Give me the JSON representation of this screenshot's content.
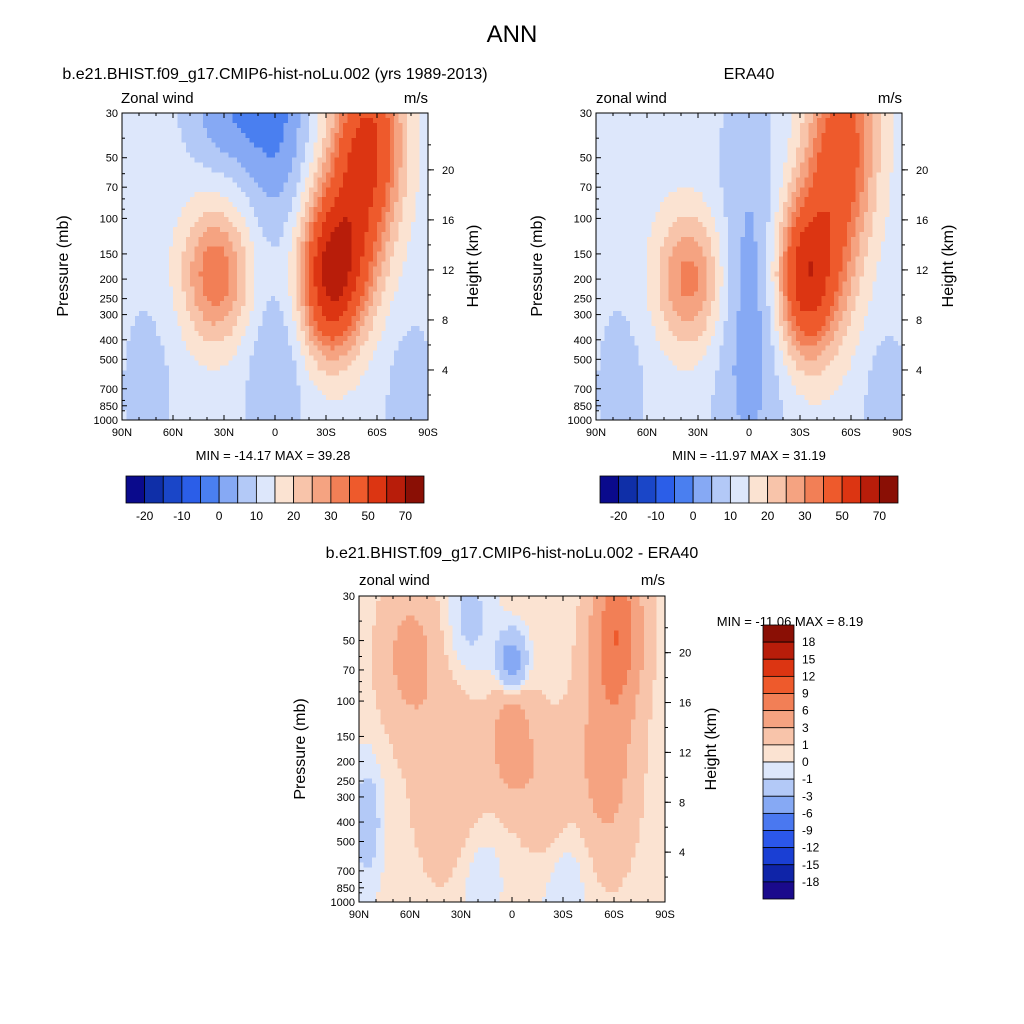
{
  "figure_title": "ANN",
  "chart_data": [
    {
      "type": "heatmap",
      "title": "b.e21.BHIST.f09_g17.CMIP6-hist-noLu.002 (yrs 1989-2013)",
      "left_label": "Zonal wind",
      "right_label": "m/s",
      "ylabel": "Pressure (mb)",
      "ylabel_right": "Height (km)",
      "x_ticks": [
        "90N",
        "60N",
        "30N",
        "0",
        "30S",
        "60S",
        "90S"
      ],
      "y_ticks": [
        "30",
        "50",
        "70",
        "100",
        "150",
        "200",
        "250",
        "300",
        "400",
        "500",
        "700",
        "850",
        "1000"
      ],
      "y2_ticks": [
        "20",
        "16",
        "12",
        "8",
        "4"
      ],
      "stats": "MIN = -14.17  MAX =  39.28",
      "min": -14.17,
      "max": 39.28,
      "colorbar_labels": [
        "-20",
        "-10",
        "0",
        "10",
        "20",
        "30",
        "50",
        "70"
      ],
      "features": [
        {
          "lat": 35,
          "p": 190,
          "value": 22,
          "sx": 14,
          "sp": 0.55
        },
        {
          "lat": -32,
          "p": 200,
          "value": 37,
          "sx": 12,
          "sp": 0.6
        },
        {
          "lat": -55,
          "p": 40,
          "value": 32,
          "sx": 14,
          "sp": 0.7
        },
        {
          "lat": -45,
          "p": 120,
          "value": 22,
          "sx": 14,
          "sp": 0.7
        },
        {
          "lat": 0,
          "p": 30,
          "value": -13,
          "sx": 14,
          "sp": 0.9
        },
        {
          "lat": 30,
          "p": 30,
          "value": -10,
          "sx": 15,
          "sp": 0.5
        },
        {
          "lat": 0,
          "p": 600,
          "value": -7,
          "sx": 12,
          "sp": 0.7
        },
        {
          "lat": 75,
          "p": 700,
          "value": -4,
          "sx": 12,
          "sp": 0.8
        },
        {
          "lat": -80,
          "p": 800,
          "value": -6,
          "sx": 10,
          "sp": 0.6
        }
      ]
    },
    {
      "type": "heatmap",
      "title": "ERA40",
      "left_label": "zonal wind",
      "right_label": "m/s",
      "ylabel": "Pressure (mb)",
      "ylabel_right": "Height (km)",
      "x_ticks": [
        "90N",
        "60N",
        "30N",
        "0",
        "30S",
        "60S",
        "90S"
      ],
      "y_ticks": [
        "30",
        "50",
        "70",
        "100",
        "150",
        "200",
        "250",
        "300",
        "400",
        "500",
        "700",
        "850",
        "1000"
      ],
      "y2_ticks": [
        "20",
        "16",
        "12",
        "8",
        "4"
      ],
      "stats": "MIN = -11.97  MAX =  31.19",
      "min": -11.97,
      "max": 31.19,
      "colorbar_labels": [
        "-20",
        "-10",
        "0",
        "10",
        "20",
        "30",
        "50",
        "70"
      ],
      "features": [
        {
          "lat": 35,
          "p": 200,
          "value": 20,
          "sx": 14,
          "sp": 0.55
        },
        {
          "lat": -32,
          "p": 200,
          "value": 30,
          "sx": 11,
          "sp": 0.6
        },
        {
          "lat": -55,
          "p": 40,
          "value": 26,
          "sx": 14,
          "sp": 0.8
        },
        {
          "lat": -45,
          "p": 150,
          "value": 18,
          "sx": 14,
          "sp": 0.8
        },
        {
          "lat": 0,
          "p": 300,
          "value": -10,
          "sx": 14,
          "sp": 1.6
        },
        {
          "lat": 75,
          "p": 700,
          "value": -4,
          "sx": 12,
          "sp": 0.8
        },
        {
          "lat": -80,
          "p": 800,
          "value": -5,
          "sx": 10,
          "sp": 0.6
        }
      ]
    },
    {
      "type": "heatmap",
      "title": "b.e21.BHIST.f09_g17.CMIP6-hist-noLu.002 - ERA40",
      "left_label": "zonal wind",
      "right_label": "m/s",
      "ylabel": "Pressure (mb)",
      "ylabel_right": "Height (km)",
      "x_ticks": [
        "90N",
        "60N",
        "30N",
        "0",
        "30S",
        "60S",
        "90S"
      ],
      "y_ticks": [
        "30",
        "50",
        "70",
        "100",
        "150",
        "200",
        "250",
        "300",
        "400",
        "500",
        "700",
        "850",
        "1000"
      ],
      "y2_ticks": [
        "20",
        "16",
        "12",
        "8",
        "4"
      ],
      "stats": "MIN = -11.06  MAX =   8.19",
      "min": -11.06,
      "max": 8.19,
      "colorbar_labels": [
        "18",
        "15",
        "12",
        "9",
        "6",
        "3",
        "1",
        "0",
        "-1",
        "-3",
        "-6",
        "-9",
        "-12",
        "-15",
        "-18"
      ],
      "features": [
        {
          "lat": -62,
          "p": 45,
          "value": 8,
          "sx": 10,
          "sp": 0.6
        },
        {
          "lat": -55,
          "p": 200,
          "value": 4,
          "sx": 12,
          "sp": 0.8
        },
        {
          "lat": 0,
          "p": 150,
          "value": 4.5,
          "sx": 8,
          "sp": 0.5
        },
        {
          "lat": 60,
          "p": 60,
          "value": 3.5,
          "sx": 12,
          "sp": 0.6
        },
        {
          "lat": 35,
          "p": 250,
          "value": 2.5,
          "sx": 15,
          "sp": 0.8
        },
        {
          "lat": -20,
          "p": 300,
          "value": 2.5,
          "sx": 10,
          "sp": 0.6
        },
        {
          "lat": 0,
          "p": 65,
          "value": -6,
          "sx": 6,
          "sp": 0.25
        },
        {
          "lat": 25,
          "p": 40,
          "value": -2,
          "sx": 10,
          "sp": 0.5
        },
        {
          "lat": 85,
          "p": 400,
          "value": -2.5,
          "sx": 6,
          "sp": 0.5
        },
        {
          "lat": -30,
          "p": 700,
          "value": -1.5,
          "sx": 12,
          "sp": 0.5
        },
        {
          "lat": 20,
          "p": 700,
          "value": -1.5,
          "sx": 10,
          "sp": 0.5
        }
      ]
    }
  ],
  "palettes": {
    "abs_colors": [
      "#0a0a8c",
      "#0f2fa8",
      "#1a46c8",
      "#2b5ee8",
      "#4a7ff0",
      "#86a9f4",
      "#b3c9f7",
      "#dde7fb",
      "#fbe3d2",
      "#f8c4aa",
      "#f5a381",
      "#f27f56",
      "#ee5a2c",
      "#dc3512",
      "#b81d0a",
      "#8a0f05"
    ],
    "abs_levels": [
      -25,
      -20,
      -15,
      -10,
      -5,
      0,
      5,
      10,
      15,
      20,
      25,
      30,
      40,
      50,
      60,
      70
    ],
    "diff_colors": [
      "#1a0a8c",
      "#0f24a8",
      "#1a3fd4",
      "#2b57ea",
      "#4a78f0",
      "#86a9f4",
      "#b3c9f7",
      "#dde7fb",
      "#fbe3d2",
      "#f8c4aa",
      "#f5a381",
      "#f27f56",
      "#ee5a2c",
      "#dc3512",
      "#b81d0a",
      "#8a0f05"
    ],
    "diff_levels": [
      -18,
      -15,
      -12,
      -9,
      -6,
      -3,
      -1,
      0,
      1,
      3,
      6,
      9,
      12,
      15,
      18
    ]
  }
}
